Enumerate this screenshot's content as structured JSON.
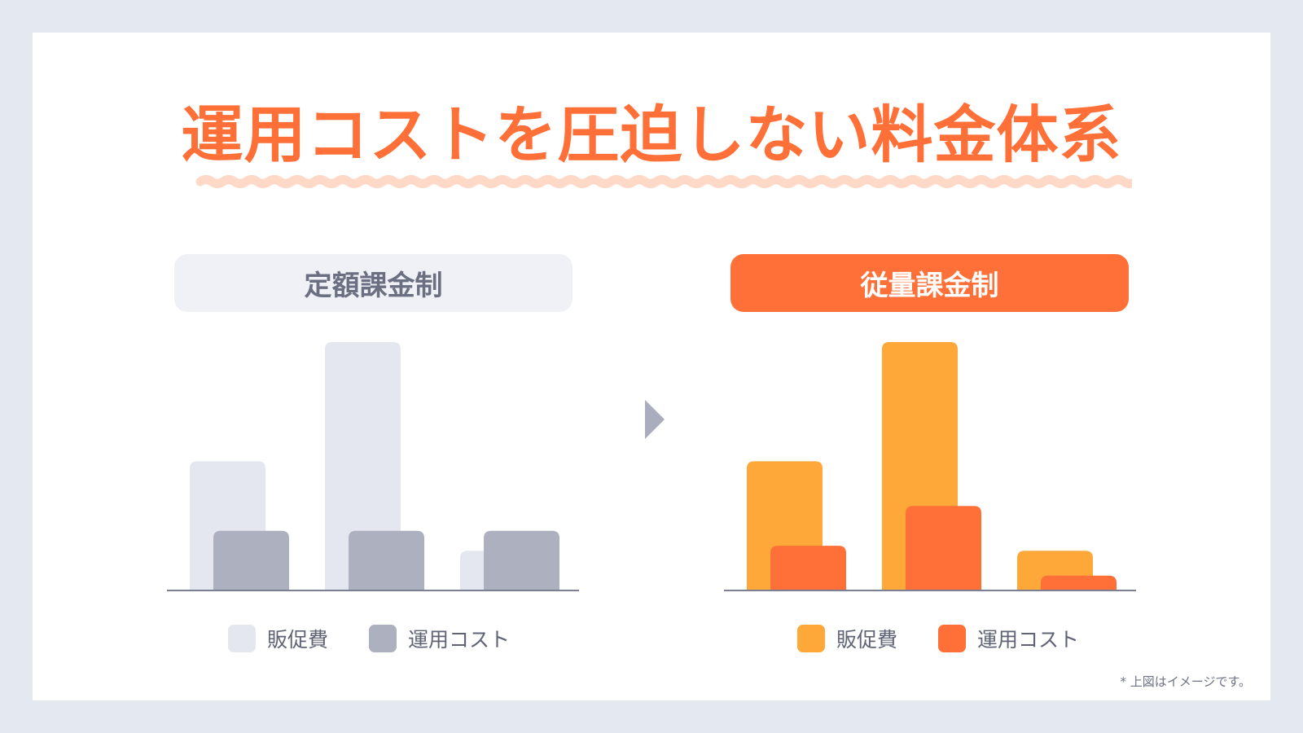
{
  "title": "運用コストを圧迫しない料金体系",
  "arrow_icon": "triangle-right",
  "footnote": "* 上図はイメージです。",
  "colors": {
    "accent": "#ff7038",
    "underline": "#ffd9c8",
    "promo_left": "#e4e7ef",
    "ops_left": "#adb0bf",
    "promo_right": "#ffa83a",
    "ops_right": "#ff7038"
  },
  "chart_data": [
    {
      "type": "bar",
      "title": "定額課金制",
      "categories": [
        "",
        "",
        ""
      ],
      "series": [
        {
          "name": "販促費",
          "values": [
            52,
            100,
            16
          ],
          "color": "#e4e7ef"
        },
        {
          "name": "運用コスト",
          "values": [
            24,
            24,
            24
          ],
          "color": "#adb0bf"
        }
      ],
      "ylim": [
        0,
        100
      ]
    },
    {
      "type": "bar",
      "title": "従量課金制",
      "categories": [
        "",
        "",
        ""
      ],
      "series": [
        {
          "name": "販促費",
          "values": [
            52,
            100,
            16
          ],
          "color": "#ffa83a"
        },
        {
          "name": "運用コスト",
          "values": [
            18,
            34,
            6
          ],
          "color": "#ff7038"
        }
      ],
      "ylim": [
        0,
        100
      ]
    }
  ]
}
